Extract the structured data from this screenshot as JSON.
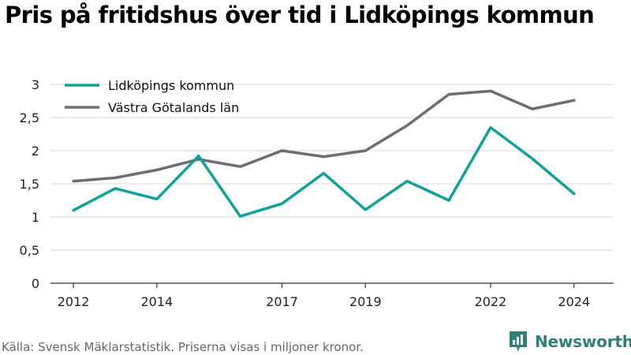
{
  "title": "Pris på fritidshus över tid i Lidköpings kommun",
  "source": "Källa: Svensk Mäklarstatistik. Priserna visas i miljoner kronor.",
  "brand": "Newsworthy",
  "colors": {
    "teal": "#10a19a",
    "gray": "#6e6d72",
    "grid": "#d9d9d9",
    "brand": "#2f7f7a"
  },
  "chart_data": {
    "type": "line",
    "x": [
      2012,
      2013,
      2014,
      2015,
      2016,
      2017,
      2018,
      2019,
      2020,
      2021,
      2022,
      2023,
      2024
    ],
    "x_tick_labels": [
      "2012",
      "2014",
      "2017",
      "2019",
      "2022",
      "2024"
    ],
    "y_tick_labels": [
      "0",
      "0,5",
      "1",
      "1,5",
      "2",
      "2,5",
      "3"
    ],
    "ylim": [
      0,
      3
    ],
    "grid": true,
    "legend_position": "top-left",
    "series": [
      {
        "name": "Lidköpings kommun",
        "color": "#10a19a",
        "values": [
          1.1,
          1.43,
          1.27,
          1.92,
          1.01,
          1.2,
          1.66,
          1.11,
          1.54,
          1.25,
          2.35,
          1.88,
          1.35
        ]
      },
      {
        "name": "Västra Götalands län",
        "color": "#6e6d72",
        "values": [
          1.54,
          1.59,
          1.71,
          1.87,
          1.76,
          2.0,
          1.91,
          2.0,
          2.38,
          2.85,
          2.9,
          2.63,
          2.76
        ]
      }
    ]
  }
}
